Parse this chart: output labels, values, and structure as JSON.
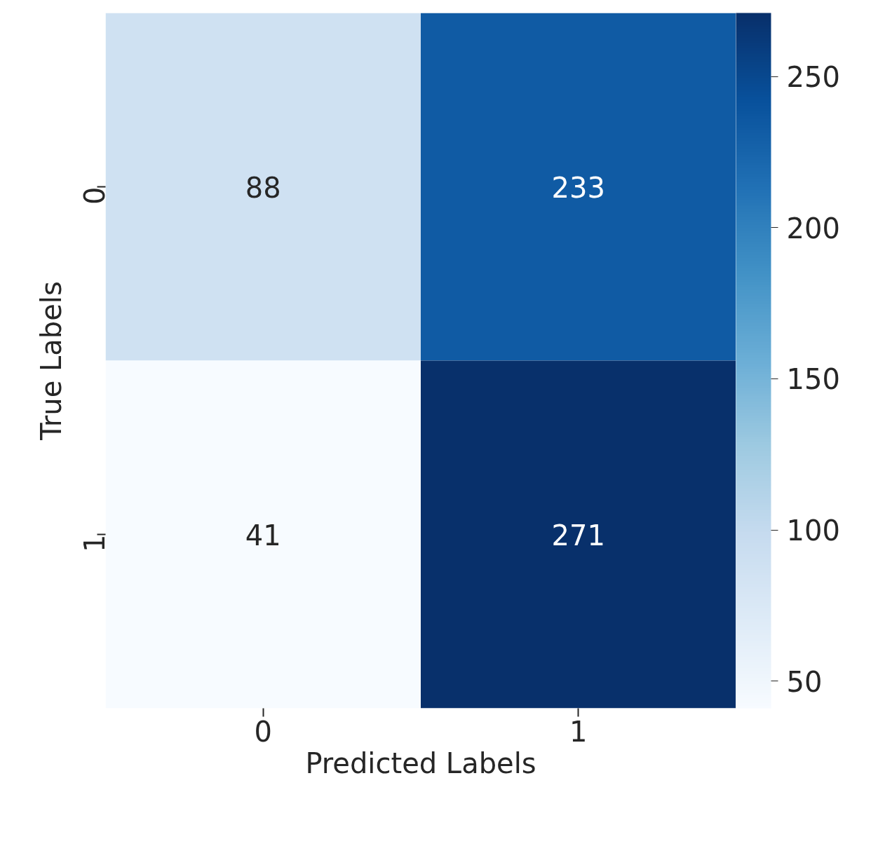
{
  "chart_data": {
    "type": "heatmap",
    "xlabel": "Predicted Labels",
    "ylabel": "True Labels",
    "categories": [
      "0",
      "1"
    ],
    "y_categories": [
      "0",
      "1"
    ],
    "cells": [
      [
        88,
        233
      ],
      [
        41,
        271
      ]
    ],
    "clim": [
      41,
      271
    ],
    "cticks": [
      50,
      100,
      150,
      200,
      250
    ],
    "data_labels": true
  }
}
